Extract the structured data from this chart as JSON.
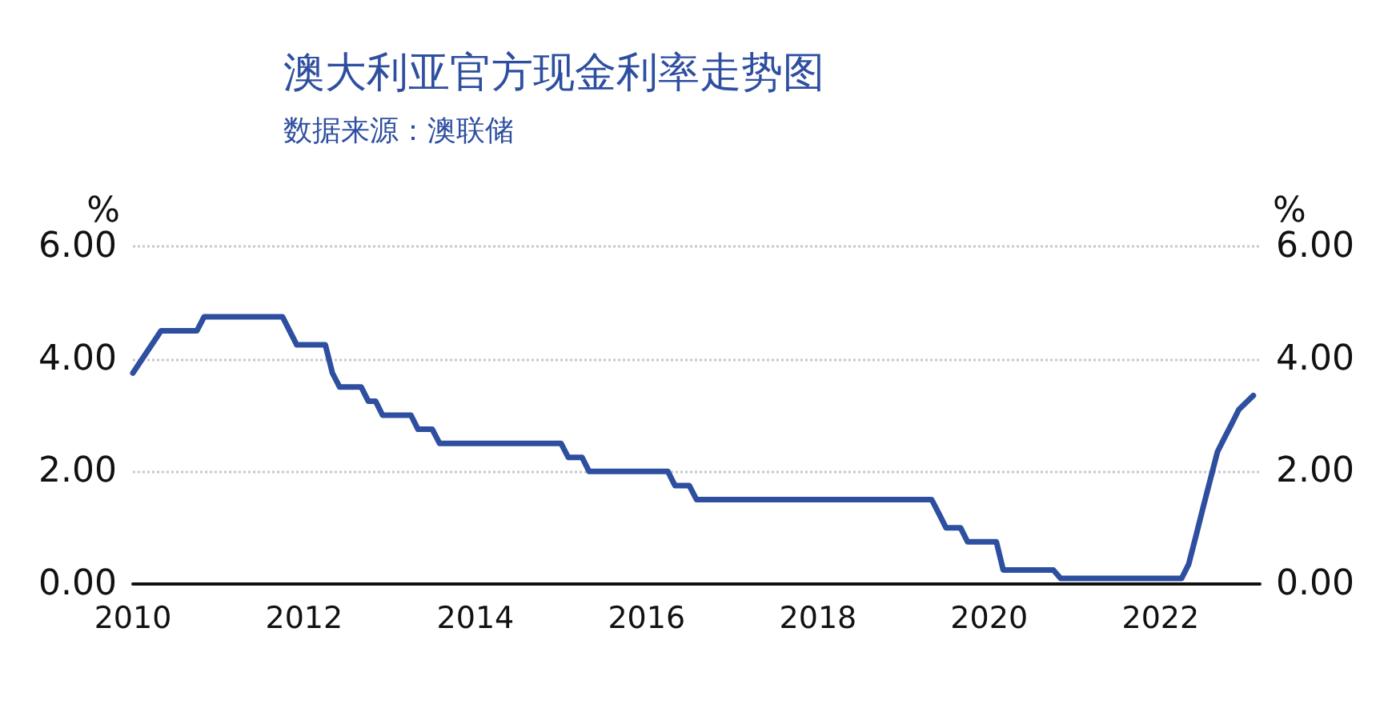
{
  "chart_data": {
    "type": "line",
    "title": "澳大利亚官方现金利率走势图",
    "subtitle": "数据来源：澳联储",
    "ylabel": "%",
    "y2label": "%",
    "x": [
      "2010-01",
      "2010-05",
      "2010-10",
      "2010-11",
      "2011-10",
      "2011-12",
      "2012-04",
      "2012-05",
      "2012-06",
      "2012-09",
      "2012-10",
      "2012-11",
      "2012-12",
      "2013-04",
      "2013-05",
      "2013-07",
      "2013-08",
      "2015-01",
      "2015-02",
      "2015-04",
      "2015-05",
      "2016-04",
      "2016-05",
      "2016-07",
      "2016-08",
      "2019-05",
      "2019-06",
      "2019-07",
      "2019-09",
      "2019-10",
      "2020-02",
      "2020-03",
      "2020-10",
      "2020-11",
      "2022-04",
      "2022-05",
      "2022-06",
      "2022-07",
      "2022-08",
      "2022-09",
      "2022-10",
      "2022-11",
      "2022-12",
      "2023-02"
    ],
    "series": [
      {
        "color": "#2e4fa0",
        "values": [
          3.75,
          4.5,
          4.5,
          4.75,
          4.75,
          4.25,
          4.25,
          3.75,
          3.5,
          3.5,
          3.25,
          3.25,
          3.0,
          3.0,
          2.75,
          2.75,
          2.5,
          2.5,
          2.25,
          2.25,
          2.0,
          2.0,
          1.75,
          1.75,
          1.5,
          1.5,
          1.25,
          1.0,
          1.0,
          0.75,
          0.75,
          0.25,
          0.25,
          0.1,
          0.1,
          0.35,
          0.85,
          1.35,
          1.85,
          2.35,
          2.6,
          2.85,
          3.1,
          3.35
        ]
      }
    ],
    "xlim": [
      "2010-01-01",
      "2023-03-01"
    ],
    "xticks": [
      "2010",
      "2012",
      "2014",
      "2016",
      "2018",
      "2020",
      "2022"
    ],
    "ylim": [
      0,
      6
    ],
    "yticks": [
      {
        "value": 0,
        "label": "0.00"
      },
      {
        "value": 2,
        "label": "2.00"
      },
      {
        "value": 4,
        "label": "4.00"
      },
      {
        "value": 6,
        "label": "6.00"
      }
    ],
    "y2lim": [
      0,
      6
    ],
    "y2ticks": [
      {
        "value": 0,
        "label": "0.00"
      },
      {
        "value": 2,
        "label": "2.00"
      },
      {
        "value": 4,
        "label": "4.00"
      },
      {
        "value": 6,
        "label": "6.00"
      }
    ],
    "grid": "y",
    "marker": "none",
    "line_style": "solid"
  }
}
